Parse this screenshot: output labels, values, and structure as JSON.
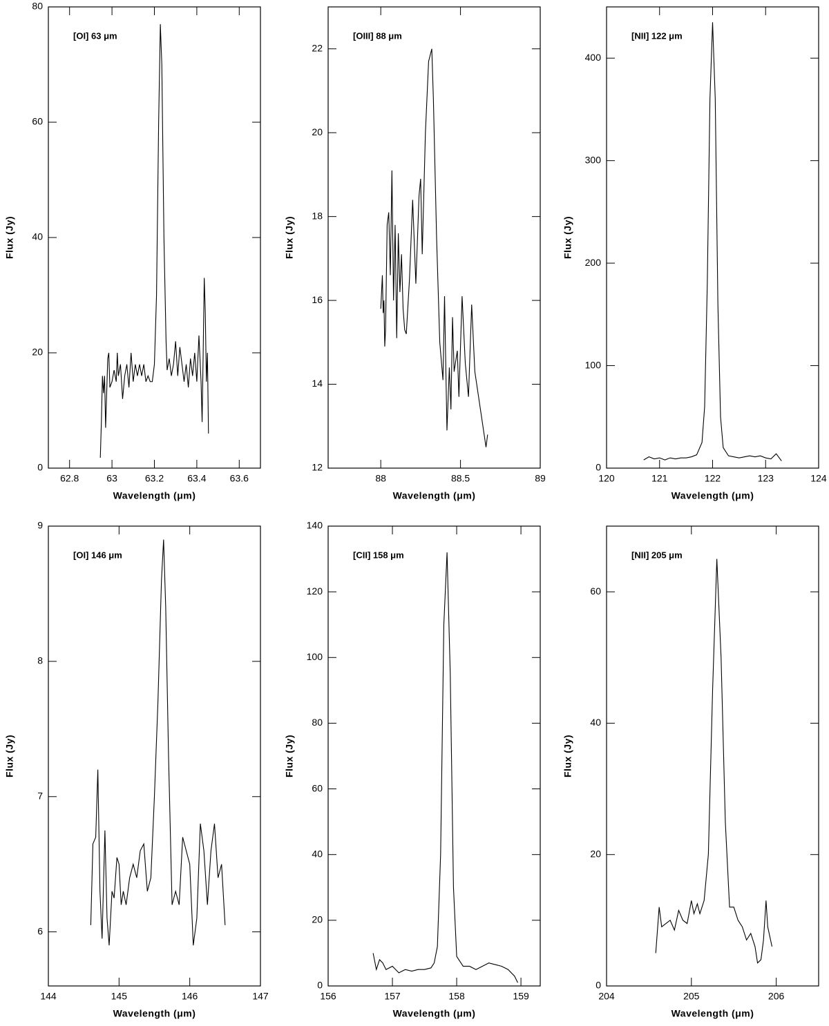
{
  "chart_data": [
    {
      "type": "line",
      "annotation": "[OI] 63 μm",
      "x_label": "Wavelength (μm)",
      "y_label": "Flux (Jy)",
      "xlim": [
        62.7,
        63.7
      ],
      "ylim": [
        0,
        80
      ],
      "xticks": [
        62.8,
        63,
        63.2,
        63.4,
        63.6
      ],
      "yticks": [
        0,
        20,
        40,
        60,
        80
      ],
      "series": [
        {
          "color": "#000000",
          "x": [
            62.945,
            62.95,
            62.955,
            62.96,
            62.965,
            62.97,
            62.975,
            62.98,
            62.985,
            62.99,
            63.0,
            63.01,
            63.02,
            63.025,
            63.03,
            63.04,
            63.05,
            63.06,
            63.07,
            63.08,
            63.09,
            63.1,
            63.11,
            63.12,
            63.13,
            63.14,
            63.15,
            63.16,
            63.17,
            63.18,
            63.19,
            63.2,
            63.21,
            63.22,
            63.228,
            63.235,
            63.245,
            63.255,
            63.26,
            63.27,
            63.28,
            63.29,
            63.3,
            63.31,
            63.32,
            63.33,
            63.34,
            63.35,
            63.36,
            63.37,
            63.38,
            63.39,
            63.4,
            63.41,
            63.42,
            63.425,
            63.43,
            63.435,
            63.44,
            63.445,
            63.45,
            63.455
          ],
          "values": [
            1.8,
            8,
            16,
            13,
            16,
            7,
            13,
            19,
            20,
            14,
            15,
            17,
            15,
            20,
            16,
            18,
            12,
            16,
            18,
            14,
            20,
            15,
            18,
            16,
            18,
            16,
            18,
            15,
            16,
            15,
            15,
            18,
            30,
            60,
            77,
            70,
            40,
            22,
            17,
            19,
            16,
            18,
            22,
            16,
            21,
            18,
            15,
            18,
            14,
            19,
            16,
            20,
            15,
            23,
            15,
            8,
            20,
            33,
            27,
            15,
            20,
            6
          ]
        }
      ]
    },
    {
      "type": "line",
      "annotation": "[OIII] 88 μm",
      "x_label": "Wavelength (μm)",
      "y_label": "Flux (Jy)",
      "xlim": [
        87.67,
        89
      ],
      "ylim": [
        12,
        23
      ],
      "xticks": [
        88,
        88.5,
        89
      ],
      "yticks": [
        12,
        14,
        16,
        18,
        20,
        22
      ],
      "series": [
        {
          "color": "#000000",
          "x": [
            88.0,
            88.01,
            88.015,
            88.02,
            88.025,
            88.03,
            88.04,
            88.05,
            88.06,
            88.07,
            88.08,
            88.09,
            88.1,
            88.11,
            88.12,
            88.13,
            88.14,
            88.15,
            88.16,
            88.18,
            88.2,
            88.22,
            88.24,
            88.25,
            88.26,
            88.28,
            88.3,
            88.32,
            88.33,
            88.35,
            88.37,
            88.39,
            88.4,
            88.415,
            88.43,
            88.44,
            88.45,
            88.46,
            88.48,
            88.49,
            88.51,
            88.53,
            88.55,
            88.57,
            88.59,
            88.66,
            88.67
          ],
          "values": [
            15.8,
            16.6,
            15.7,
            16,
            14.9,
            15.3,
            17.8,
            18.1,
            16.6,
            19.1,
            16,
            17.8,
            15.1,
            17.6,
            16.2,
            17.1,
            15.8,
            15.3,
            15.2,
            16.5,
            18.4,
            16.4,
            18.5,
            18.9,
            17.1,
            20,
            21.7,
            22,
            20.8,
            17.5,
            15,
            14.1,
            16.1,
            12.9,
            14.4,
            13.4,
            15.6,
            14.3,
            14.8,
            13.7,
            16.1,
            14.5,
            13.7,
            15.9,
            14.3,
            12.5,
            12.8
          ]
        }
      ]
    },
    {
      "type": "line",
      "annotation": "[NII] 122 μm",
      "x_label": "Wavelength (μm)",
      "y_label": "Flux (Jy)",
      "xlim": [
        120,
        124
      ],
      "ylim": [
        0,
        450
      ],
      "xticks": [
        120,
        121,
        122,
        123,
        124
      ],
      "yticks": [
        0,
        100,
        200,
        300,
        400
      ],
      "series": [
        {
          "color": "#000000",
          "x": [
            120.7,
            120.8,
            120.9,
            121,
            121.1,
            121.2,
            121.3,
            121.4,
            121.5,
            121.6,
            121.7,
            121.8,
            121.85,
            121.9,
            121.95,
            122.0,
            122.05,
            122.1,
            122.15,
            122.2,
            122.3,
            122.4,
            122.5,
            122.6,
            122.7,
            122.8,
            122.9,
            123,
            123.1,
            123.2,
            123.3
          ],
          "values": [
            8,
            11,
            9,
            10,
            8,
            10,
            9,
            10,
            10,
            11,
            13,
            25,
            60,
            180,
            360,
            435,
            360,
            160,
            50,
            20,
            12,
            11,
            10,
            11,
            12,
            11,
            12,
            10,
            9,
            14,
            7
          ]
        }
      ]
    },
    {
      "type": "line",
      "annotation": "[OI] 146 μm",
      "x_label": "Wavelength (μm)",
      "y_label": "Flux (Jy)",
      "xlim": [
        144,
        147
      ],
      "ylim": [
        5.6,
        9
      ],
      "xticks": [
        144,
        145,
        146,
        147
      ],
      "yticks": [
        6,
        7,
        8,
        9
      ],
      "series": [
        {
          "color": "#000000",
          "x": [
            144.6,
            144.63,
            144.67,
            144.7,
            144.73,
            144.76,
            144.8,
            144.83,
            144.86,
            144.9,
            144.93,
            144.97,
            145,
            145.03,
            145.06,
            145.1,
            145.15,
            145.2,
            145.25,
            145.3,
            145.35,
            145.4,
            145.45,
            145.5,
            145.55,
            145.6,
            145.63,
            145.66,
            145.7,
            145.75,
            145.8,
            145.85,
            145.9,
            145.95,
            146,
            146.05,
            146.1,
            146.15,
            146.2,
            146.25,
            146.3,
            146.35,
            146.4,
            146.45,
            146.5
          ],
          "values": [
            6.05,
            6.65,
            6.7,
            7.2,
            6.3,
            5.95,
            6.75,
            6.1,
            5.9,
            6.3,
            6.25,
            6.55,
            6.5,
            6.2,
            6.3,
            6.2,
            6.4,
            6.5,
            6.4,
            6.6,
            6.65,
            6.3,
            6.4,
            7,
            7.7,
            8.6,
            8.9,
            8.4,
            7.3,
            6.2,
            6.3,
            6.2,
            6.7,
            6.6,
            6.5,
            5.9,
            6.1,
            6.8,
            6.6,
            6.2,
            6.6,
            6.8,
            6.4,
            6.5,
            6.05
          ]
        }
      ]
    },
    {
      "type": "line",
      "annotation": "[CII] 158 μm",
      "x_label": "Wavelength (μm)",
      "y_label": "Flux (Jy)",
      "xlim": [
        156,
        159.3
      ],
      "ylim": [
        0,
        140
      ],
      "xticks": [
        156,
        157,
        158,
        159
      ],
      "yticks": [
        0,
        20,
        40,
        60,
        80,
        100,
        120,
        140
      ],
      "series": [
        {
          "color": "#000000",
          "x": [
            156.7,
            156.75,
            156.8,
            156.85,
            156.9,
            157,
            157.1,
            157.2,
            157.3,
            157.4,
            157.5,
            157.6,
            157.65,
            157.7,
            157.75,
            157.8,
            157.85,
            157.9,
            157.95,
            158,
            158.1,
            158.2,
            158.3,
            158.4,
            158.5,
            158.6,
            158.7,
            158.8,
            158.9,
            158.95
          ],
          "values": [
            10,
            5,
            8,
            7,
            5,
            6,
            4,
            5,
            4.5,
            5,
            5,
            5.5,
            7,
            12,
            40,
            110,
            132,
            95,
            30,
            9,
            6,
            6,
            5,
            6,
            7,
            6.5,
            6,
            5,
            3,
            1
          ]
        }
      ]
    },
    {
      "type": "line",
      "annotation": "[NII] 205 μm",
      "x_label": "Wavelength (μm)",
      "y_label": "Flux (Jy)",
      "xlim": [
        204,
        206.5
      ],
      "ylim": [
        0,
        70
      ],
      "xticks": [
        204,
        205,
        206
      ],
      "yticks": [
        0,
        20,
        40,
        60
      ],
      "series": [
        {
          "color": "#000000",
          "x": [
            204.58,
            204.62,
            204.65,
            204.7,
            204.75,
            204.8,
            204.85,
            204.9,
            204.95,
            205,
            205.03,
            205.07,
            205.1,
            205.15,
            205.2,
            205.25,
            205.3,
            205.35,
            205.4,
            205.45,
            205.5,
            205.55,
            205.6,
            205.65,
            205.7,
            205.75,
            205.78,
            205.82,
            205.85,
            205.88,
            205.9,
            205.95
          ],
          "values": [
            5,
            12,
            9,
            9.5,
            10,
            8.5,
            11.5,
            10,
            9.5,
            13,
            11,
            12.5,
            11,
            13,
            20,
            45,
            65,
            50,
            25,
            12,
            12,
            10,
            9,
            7,
            8,
            6,
            3.5,
            4,
            7,
            13,
            9,
            6
          ]
        }
      ]
    }
  ]
}
